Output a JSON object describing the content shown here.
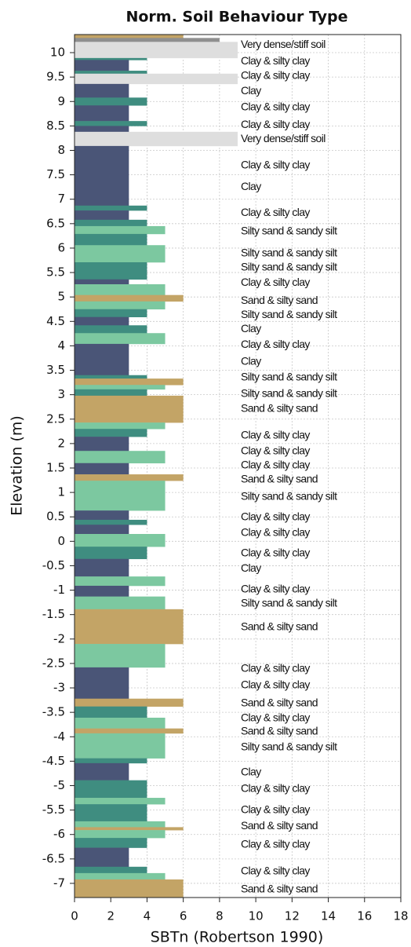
{
  "chart_data": {
    "type": "soil-profile",
    "title": "Norm. Soil Behaviour Type",
    "x_label": "SBTn (Robertson 1990)",
    "y_label": "Elevation (m)",
    "xlim": [
      0,
      18
    ],
    "xticks": [
      0,
      2,
      4,
      6,
      8,
      10,
      12,
      14,
      16,
      18
    ],
    "ylim": [
      -7.29,
      10.37
    ],
    "yticks": [
      10,
      9.5,
      9,
      8.5,
      8,
      7.5,
      7,
      6.5,
      6,
      5.5,
      5,
      4.5,
      4,
      3.5,
      3,
      2.5,
      2,
      1.5,
      1,
      0.5,
      0,
      -0.5,
      -1,
      -1.5,
      -2,
      -2.5,
      -3,
      -3.5,
      -4,
      -4.5,
      -5,
      -5.5,
      -6,
      -6.5,
      -7
    ],
    "grid": true,
    "colors": {
      "3": "#4a5577",
      "4": "#3f8d80",
      "5": "#7cc8a0",
      "6": "#c3a466",
      "8": "#8f8f8f",
      "9": "#dedede"
    },
    "layers": [
      {
        "top": 10.37,
        "bottom": 10.3,
        "sbt": 6
      },
      {
        "top": 10.3,
        "bottom": 10.22,
        "sbt": 8
      },
      {
        "top": 10.22,
        "bottom": 9.89,
        "sbt": 9
      },
      {
        "top": 9.89,
        "bottom": 9.85,
        "sbt": 4
      },
      {
        "top": 9.85,
        "bottom": 9.63,
        "sbt": 3
      },
      {
        "top": 9.63,
        "bottom": 9.57,
        "sbt": 4
      },
      {
        "top": 9.57,
        "bottom": 9.36,
        "sbt": 9
      },
      {
        "top": 9.36,
        "bottom": 9.08,
        "sbt": 3
      },
      {
        "top": 9.08,
        "bottom": 8.92,
        "sbt": 4
      },
      {
        "top": 8.92,
        "bottom": 8.6,
        "sbt": 3
      },
      {
        "top": 8.6,
        "bottom": 8.5,
        "sbt": 4
      },
      {
        "top": 8.5,
        "bottom": 8.38,
        "sbt": 3
      },
      {
        "top": 8.38,
        "bottom": 8.09,
        "sbt": 9
      },
      {
        "top": 8.09,
        "bottom": 6.87,
        "sbt": 3
      },
      {
        "top": 6.87,
        "bottom": 6.77,
        "sbt": 4
      },
      {
        "top": 6.77,
        "bottom": 6.58,
        "sbt": 3
      },
      {
        "top": 6.58,
        "bottom": 6.45,
        "sbt": 4
      },
      {
        "top": 6.45,
        "bottom": 6.29,
        "sbt": 5
      },
      {
        "top": 6.29,
        "bottom": 6.06,
        "sbt": 4
      },
      {
        "top": 6.06,
        "bottom": 5.71,
        "sbt": 5
      },
      {
        "top": 5.71,
        "bottom": 5.36,
        "sbt": 4
      },
      {
        "top": 5.36,
        "bottom": 5.26,
        "sbt": 3
      },
      {
        "top": 5.26,
        "bottom": 5.04,
        "sbt": 5
      },
      {
        "top": 5.04,
        "bottom": 4.91,
        "sbt": 6
      },
      {
        "top": 4.91,
        "bottom": 4.75,
        "sbt": 5
      },
      {
        "top": 4.75,
        "bottom": 4.59,
        "sbt": 4
      },
      {
        "top": 4.59,
        "bottom": 4.42,
        "sbt": 3
      },
      {
        "top": 4.42,
        "bottom": 4.26,
        "sbt": 4
      },
      {
        "top": 4.26,
        "bottom": 4.04,
        "sbt": 5
      },
      {
        "top": 4.04,
        "bottom": 3.4,
        "sbt": 3
      },
      {
        "top": 3.4,
        "bottom": 3.33,
        "sbt": 4
      },
      {
        "top": 3.33,
        "bottom": 3.2,
        "sbt": 6
      },
      {
        "top": 3.2,
        "bottom": 3.11,
        "sbt": 5
      },
      {
        "top": 3.11,
        "bottom": 2.98,
        "sbt": 4
      },
      {
        "top": 2.98,
        "bottom": 2.43,
        "sbt": 6
      },
      {
        "top": 2.43,
        "bottom": 2.3,
        "sbt": 5
      },
      {
        "top": 2.3,
        "bottom": 2.14,
        "sbt": 4
      },
      {
        "top": 2.14,
        "bottom": 1.85,
        "sbt": 3
      },
      {
        "top": 1.85,
        "bottom": 1.6,
        "sbt": 5
      },
      {
        "top": 1.6,
        "bottom": 1.37,
        "sbt": 3
      },
      {
        "top": 1.37,
        "bottom": 1.24,
        "sbt": 6
      },
      {
        "top": 1.24,
        "bottom": 0.63,
        "sbt": 5
      },
      {
        "top": 0.63,
        "bottom": 0.44,
        "sbt": 3
      },
      {
        "top": 0.44,
        "bottom": 0.34,
        "sbt": 4
      },
      {
        "top": 0.34,
        "bottom": 0.15,
        "sbt": 3
      },
      {
        "top": 0.15,
        "bottom": -0.11,
        "sbt": 5
      },
      {
        "top": -0.11,
        "bottom": -0.36,
        "sbt": 4
      },
      {
        "top": -0.36,
        "bottom": -0.72,
        "sbt": 3
      },
      {
        "top": -0.72,
        "bottom": -0.91,
        "sbt": 5
      },
      {
        "top": -0.91,
        "bottom": -1.13,
        "sbt": 3
      },
      {
        "top": -1.13,
        "bottom": -1.39,
        "sbt": 5
      },
      {
        "top": -1.39,
        "bottom": -2.1,
        "sbt": 6
      },
      {
        "top": -2.1,
        "bottom": -2.58,
        "sbt": 5
      },
      {
        "top": -2.58,
        "bottom": -3.22,
        "sbt": 3
      },
      {
        "top": -3.22,
        "bottom": -3.38,
        "sbt": 6
      },
      {
        "top": -3.38,
        "bottom": -3.61,
        "sbt": 4
      },
      {
        "top": -3.61,
        "bottom": -3.83,
        "sbt": 5
      },
      {
        "top": -3.83,
        "bottom": -3.93,
        "sbt": 6
      },
      {
        "top": -3.93,
        "bottom": -4.44,
        "sbt": 5
      },
      {
        "top": -4.44,
        "bottom": -4.54,
        "sbt": 4
      },
      {
        "top": -4.54,
        "bottom": -4.89,
        "sbt": 3
      },
      {
        "top": -4.89,
        "bottom": -5.25,
        "sbt": 4
      },
      {
        "top": -5.25,
        "bottom": -5.38,
        "sbt": 5
      },
      {
        "top": -5.38,
        "bottom": -5.73,
        "sbt": 4
      },
      {
        "top": -5.73,
        "bottom": -5.85,
        "sbt": 5
      },
      {
        "top": -5.85,
        "bottom": -5.91,
        "sbt": 6
      },
      {
        "top": -5.91,
        "bottom": -6.07,
        "sbt": 5
      },
      {
        "top": -6.07,
        "bottom": -6.27,
        "sbt": 4
      },
      {
        "top": -6.27,
        "bottom": -6.66,
        "sbt": 3
      },
      {
        "top": -6.66,
        "bottom": -6.79,
        "sbt": 4
      },
      {
        "top": -6.79,
        "bottom": -6.92,
        "sbt": 5
      },
      {
        "top": -6.92,
        "bottom": -7.29,
        "sbt": 6
      }
    ],
    "annotations": [
      {
        "text": "Very dense/stiff soil",
        "elevation": 10.16
      },
      {
        "text": "Clay & silty clay",
        "elevation": 9.82
      },
      {
        "text": "Clay & silty clay",
        "elevation": 9.52
      },
      {
        "text": "Clay",
        "elevation": 9.21
      },
      {
        "text": "Clay & silty clay",
        "elevation": 8.88
      },
      {
        "text": "Clay & silty clay",
        "elevation": 8.52
      },
      {
        "text": "Very dense/stiff soil",
        "elevation": 8.23
      },
      {
        "text": "Clay & silty clay",
        "elevation": 7.69
      },
      {
        "text": "Clay",
        "elevation": 7.25
      },
      {
        "text": "Clay & silty clay",
        "elevation": 6.72
      },
      {
        "text": "Silty sand & sandy silt",
        "elevation": 6.34
      },
      {
        "text": "Silty sand & sandy silt",
        "elevation": 5.89
      },
      {
        "text": "Silty sand & sandy silt",
        "elevation": 5.6
      },
      {
        "text": "Clay & silty clay",
        "elevation": 5.29
      },
      {
        "text": "Sand & silty sand",
        "elevation": 4.92
      },
      {
        "text": "Silty sand & sandy silt",
        "elevation": 4.63
      },
      {
        "text": "Clay",
        "elevation": 4.34
      },
      {
        "text": "Clay & silty clay",
        "elevation": 4.02
      },
      {
        "text": "Clay",
        "elevation": 3.67
      },
      {
        "text": "Silty sand & sandy silt",
        "elevation": 3.35
      },
      {
        "text": "Silty sand & sandy silt",
        "elevation": 3.01
      },
      {
        "text": "Sand & silty sand",
        "elevation": 2.71
      },
      {
        "text": "Clay & silty clay",
        "elevation": 2.16
      },
      {
        "text": "Clay & silty clay",
        "elevation": 1.84
      },
      {
        "text": "Clay & silty clay",
        "elevation": 1.55
      },
      {
        "text": "Sand & silty sand",
        "elevation": 1.26
      },
      {
        "text": "Silty sand & sandy silt",
        "elevation": 0.91
      },
      {
        "text": "Clay & silty clay",
        "elevation": 0.49
      },
      {
        "text": "Clay & silty clay",
        "elevation": 0.17
      },
      {
        "text": "Clay & silty clay",
        "elevation": -0.25
      },
      {
        "text": "Clay",
        "elevation": -0.56
      },
      {
        "text": "Clay & silty clay",
        "elevation": -0.99
      },
      {
        "text": "Silty sand & sandy silt",
        "elevation": -1.28
      },
      {
        "text": "Sand & silty sand",
        "elevation": -1.76
      },
      {
        "text": "Clay & silty clay",
        "elevation": -2.61
      },
      {
        "text": "Clay & silty clay",
        "elevation": -2.95
      },
      {
        "text": "Sand & silty sand",
        "elevation": -3.32
      },
      {
        "text": "Clay & silty clay",
        "elevation": -3.62
      },
      {
        "text": "Sand & silty sand",
        "elevation": -3.9
      },
      {
        "text": "Silty sand & sandy silt",
        "elevation": -4.22
      },
      {
        "text": "Clay",
        "elevation": -4.73
      },
      {
        "text": "Clay & silty clay",
        "elevation": -5.07
      },
      {
        "text": "Clay & silty clay",
        "elevation": -5.5
      },
      {
        "text": "Sand & silty sand",
        "elevation": -5.83
      },
      {
        "text": "Clay & silty clay",
        "elevation": -6.21
      },
      {
        "text": "Clay & silty clay",
        "elevation": -6.76
      },
      {
        "text": "Sand & silty sand",
        "elevation": -7.13
      }
    ]
  }
}
